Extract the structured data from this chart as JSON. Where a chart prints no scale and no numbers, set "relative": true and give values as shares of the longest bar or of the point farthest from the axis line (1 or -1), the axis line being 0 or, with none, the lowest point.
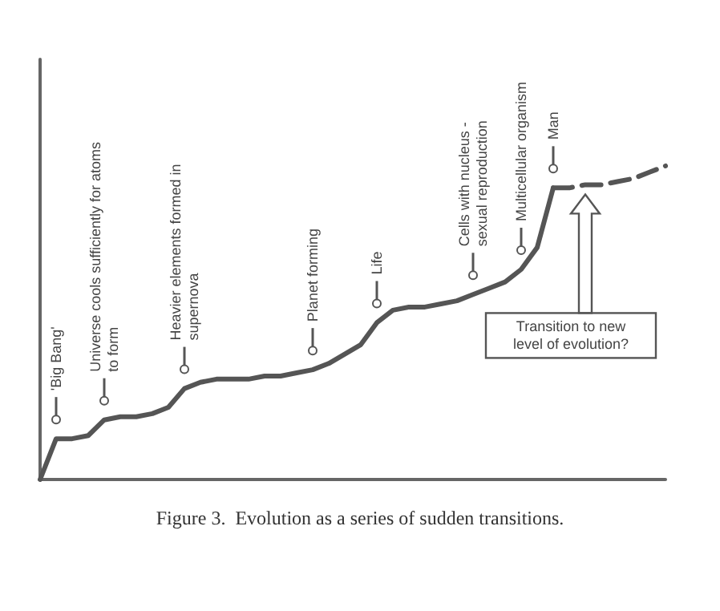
{
  "chart_data": {
    "type": "line",
    "title": "Figure 3.  Evolution as a series of sudden transitions.",
    "relative": true,
    "marker": "none",
    "categories": [
      null,
      null,
      null,
      null,
      null,
      null,
      null,
      null,
      null,
      null,
      null,
      null,
      null,
      null,
      null,
      null,
      null,
      null,
      null,
      null,
      null,
      null,
      null,
      null,
      null,
      null,
      null,
      null,
      null,
      null,
      null,
      null,
      null,
      null,
      null,
      null,
      null,
      null,
      null,
      null
    ],
    "annotations": [
      "'Big Bang'",
      "Universe cools sufficiently for atoms\nto form",
      "Heavier elements formed in\nsupernova",
      "Planet forming",
      "Life",
      "Cells with nucleus -\nsexual reproduction",
      "Multicellular organism",
      "Man",
      "Transition to new\nlevel of evolution?"
    ],
    "series": [
      {
        "color": "#555555",
        "line_style": "solid",
        "values": [
          0,
          0.13,
          0.13,
          0.14,
          0.19,
          0.2,
          0.2,
          0.21,
          0.23,
          0.29,
          0.31,
          0.32,
          0.32,
          0.32,
          0.33,
          0.33,
          0.34,
          0.35,
          0.37,
          0.4,
          0.43,
          0.5,
          0.54,
          0.55,
          0.55,
          0.56,
          0.57,
          0.59,
          0.61,
          0.63,
          0.67,
          0.74,
          0.93,
          null,
          null,
          null,
          null,
          null,
          null,
          null
        ]
      },
      {
        "color": "#555555",
        "line_style": "dashed",
        "values": [
          null,
          null,
          null,
          null,
          null,
          null,
          null,
          null,
          null,
          null,
          null,
          null,
          null,
          null,
          null,
          null,
          null,
          null,
          null,
          null,
          null,
          null,
          null,
          null,
          null,
          null,
          null,
          null,
          null,
          null,
          null,
          null,
          0.93,
          0.93,
          0.94,
          0.94,
          0.95,
          0.96,
          0.98,
          1
        ]
      }
    ]
  }
}
